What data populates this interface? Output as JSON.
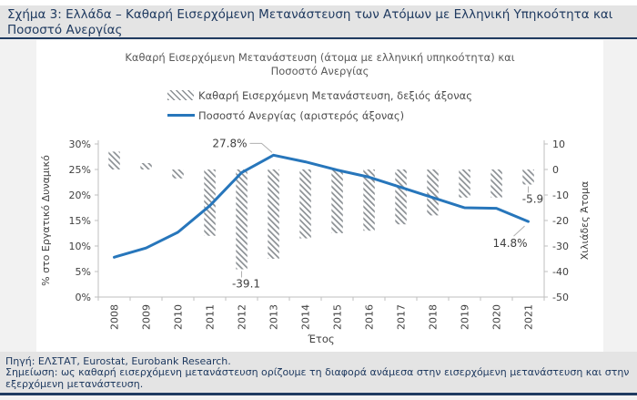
{
  "header": {
    "title_lines": [
      "Σχήμα 3: Ελλάδα – Καθαρή Εισερχόμενη Μετανάστευση των Ατόμων με Ελληνική Υπηκοότητα και",
      "Ποσοστό Ανεργίας"
    ]
  },
  "chart_data": {
    "type": "combo bar+line, dual axis",
    "title_lines": [
      "Καθαρή Εισερχόμενη Μετανάστευση (άτομα με ελληνική υπηκοότητα) και",
      "Ποσοστό Ανεργίας"
    ],
    "categories": [
      "2008",
      "2009",
      "2010",
      "2011",
      "2012",
      "2013",
      "2014",
      "2015",
      "2016",
      "2017",
      "2018",
      "2019",
      "2020",
      "2021"
    ],
    "xlabel": "Έτος",
    "grid": false,
    "legend_position": "top",
    "left_axis": {
      "label": "% στο Εργατικό Δυναμικό",
      "min": 0,
      "max": 30,
      "tick_values": [
        0,
        5,
        10,
        15,
        20,
        25,
        30
      ],
      "tick_labels": [
        "0%",
        "5%",
        "10%",
        "15%",
        "20%",
        "25%",
        "30%"
      ]
    },
    "right_axis": {
      "label": "Χιλιάδες Άτομα",
      "min": -50,
      "max": 10,
      "tick_values": [
        10,
        0,
        -10,
        -20,
        -30,
        -40,
        -50
      ],
      "tick_labels": [
        "10",
        "0",
        "-10",
        "-20",
        "-30",
        "-40",
        "-50"
      ]
    },
    "series": [
      {
        "name": "Καθαρή Εισερχόμενη Μετανάστευση, δεξιός άξονας",
        "type": "bar",
        "axis": "right",
        "unit": "thousands of persons",
        "values": [
          7,
          2.5,
          -3.5,
          -26,
          -39.1,
          -35,
          -27,
          -25,
          -24,
          -21.5,
          -18,
          -11,
          -11,
          -5.9
        ]
      },
      {
        "name": "Ποσοστό Ανεργίας (αριστερός άξονας)",
        "type": "line",
        "axis": "left",
        "unit": "% of labour force",
        "values": [
          7.8,
          9.6,
          12.7,
          17.9,
          24.4,
          27.8,
          26.5,
          24.9,
          23.5,
          21.5,
          19.5,
          17.5,
          17.4,
          14.8
        ]
      }
    ],
    "annotations": [
      {
        "text": "27.8%",
        "series": 1,
        "index": 5,
        "kind": "line-peak"
      },
      {
        "text": "-39.1",
        "series": 0,
        "index": 4,
        "kind": "below-bar"
      },
      {
        "text": "-5.9",
        "series": 0,
        "index": 13,
        "kind": "below-bar"
      },
      {
        "text": "14.8%",
        "series": 1,
        "index": 13,
        "kind": "line-end"
      }
    ]
  },
  "footer": {
    "source": "Πηγή: ΕΛΣΤΑΤ, Eurostat, Eurobank Research.",
    "note": "Σημείωση: ως καθαρή εισερχόμενη μετανάστευση ορίζουμε τη διαφορά ανάμεσα στην εισερχόμενη μετανάστευση και στην εξερχόμενη μετανάστευση."
  },
  "colors": {
    "accent_navy": "#1f3a60",
    "line_blue": "#2776bb",
    "hatch_gray": "#8b9094",
    "axis_gray": "#bfbfbf",
    "title_gray": "#595959",
    "tick_text": "#3f3f3f",
    "leader_gray": "#b0b0b0",
    "panel_bg": "#ffffff",
    "band_bg": "#e4e4e4",
    "page_bg": "#f2f2f2"
  }
}
